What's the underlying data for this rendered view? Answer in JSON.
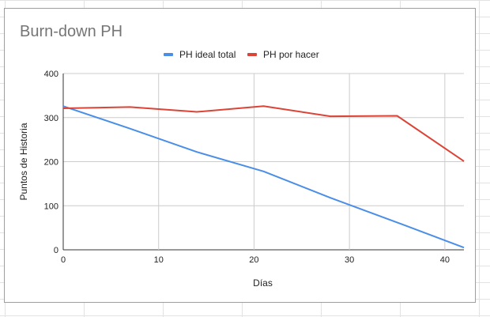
{
  "chart_data": {
    "type": "line",
    "title": "Burn-down PH",
    "xlabel": "Días",
    "ylabel": "Puntos de Historia",
    "xlim": [
      0,
      42
    ],
    "ylim": [
      0,
      400
    ],
    "xticks": [
      0,
      10,
      20,
      30,
      40
    ],
    "yticks": [
      0,
      100,
      200,
      300,
      400
    ],
    "grid": true,
    "legend_position": "top",
    "series": [
      {
        "name": "PH ideal total",
        "color": "#4a8ee8",
        "x": [
          0,
          7,
          14,
          21,
          28,
          35,
          42
        ],
        "values": [
          326,
          275,
          222,
          178,
          118,
          62,
          5
        ]
      },
      {
        "name": "PH por hacer",
        "color": "#db4437",
        "x": [
          0,
          7,
          14,
          21,
          28,
          35,
          42
        ],
        "values": [
          321,
          324,
          313,
          326,
          303,
          304,
          201
        ]
      }
    ]
  }
}
